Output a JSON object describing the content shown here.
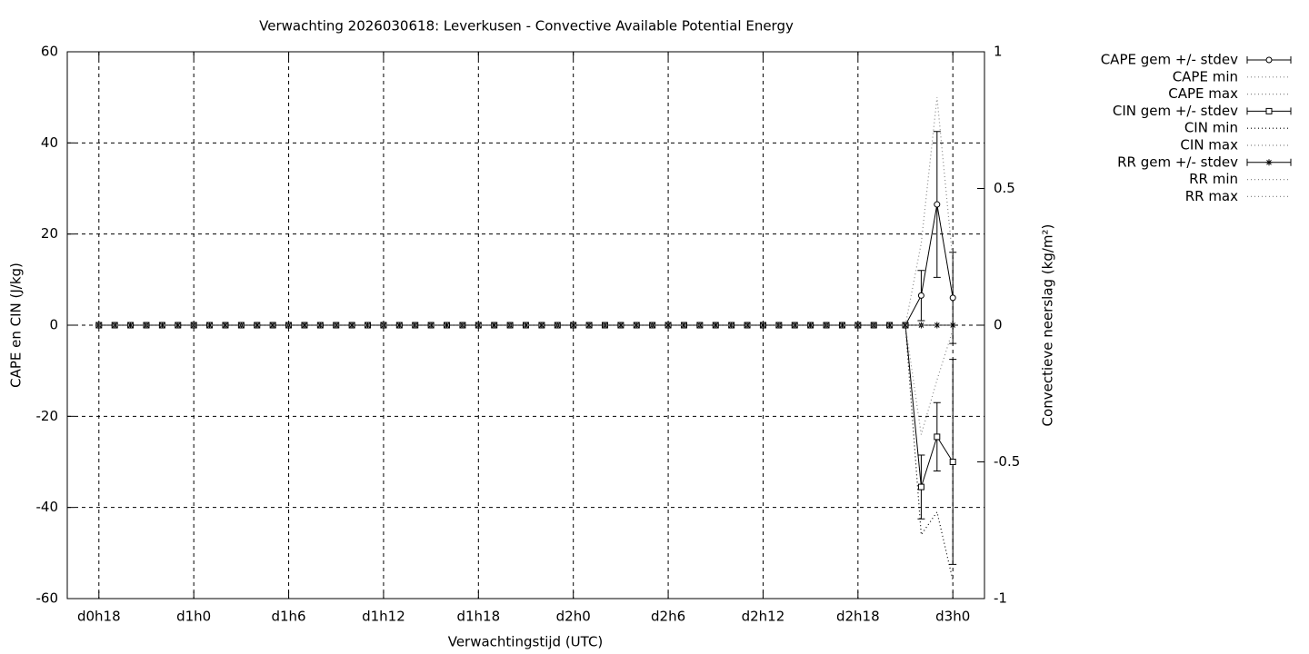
{
  "chart_data": {
    "type": "line",
    "title": "Verwachting 2026030618: Leverkusen - Convective Available Potential Energy",
    "xlabel": "Verwachtingstijd (UTC)",
    "ylabel": "CAPE en CIN (J/kg)",
    "y2label": "Convectieve neerslag (kg/m²)",
    "x": [
      18,
      19,
      20,
      21,
      22,
      23,
      24,
      25,
      26,
      27,
      28,
      29,
      30,
      31,
      32,
      33,
      34,
      35,
      36,
      37,
      38,
      39,
      40,
      41,
      42,
      43,
      44,
      45,
      46,
      47,
      48,
      49,
      50,
      51,
      52,
      53,
      54,
      55,
      56,
      57,
      58,
      59,
      60,
      61,
      62,
      63,
      64,
      65,
      66,
      67,
      68,
      69,
      70,
      71,
      72
    ],
    "xlim": [
      16,
      74
    ],
    "xticks": [
      {
        "value": 18,
        "label": "d0h18"
      },
      {
        "value": 24,
        "label": "d1h0"
      },
      {
        "value": 30,
        "label": "d1h6"
      },
      {
        "value": 36,
        "label": "d1h12"
      },
      {
        "value": 42,
        "label": "d1h18"
      },
      {
        "value": 48,
        "label": "d2h0"
      },
      {
        "value": 54,
        "label": "d2h6"
      },
      {
        "value": 60,
        "label": "d2h12"
      },
      {
        "value": 66,
        "label": "d2h18"
      },
      {
        "value": 72,
        "label": "d3h0"
      }
    ],
    "ylim": [
      -60,
      60
    ],
    "yticks": [
      -60,
      -40,
      -20,
      0,
      20,
      40,
      60
    ],
    "y2lim": [
      -1,
      1
    ],
    "y2ticks": [
      -1,
      -0.5,
      0,
      0.5,
      1
    ],
    "grid": true,
    "legend": "right",
    "series": [
      {
        "name": "CAPE gem +/- stdev",
        "color": "#000000",
        "style": "errorlines",
        "marker": "circle",
        "values": [
          0,
          0,
          0,
          0,
          0,
          0,
          0,
          0,
          0,
          0,
          0,
          0,
          0,
          0,
          0,
          0,
          0,
          0,
          0,
          0,
          0,
          0,
          0,
          0,
          0,
          0,
          0,
          0,
          0,
          0,
          0,
          0,
          0,
          0,
          0,
          0,
          0,
          0,
          0,
          0,
          0,
          0,
          0,
          0,
          0,
          0,
          0,
          0,
          0,
          0,
          0,
          0,
          6.5,
          26.5,
          6
        ],
        "errors": [
          0,
          0,
          0,
          0,
          0,
          0,
          0,
          0,
          0,
          0,
          0,
          0,
          0,
          0,
          0,
          0,
          0,
          0,
          0,
          0,
          0,
          0,
          0,
          0,
          0,
          0,
          0,
          0,
          0,
          0,
          0,
          0,
          0,
          0,
          0,
          0,
          0,
          0,
          0,
          0,
          0,
          0,
          0,
          0,
          0,
          0,
          0,
          0,
          0,
          0,
          0,
          0,
          5.5,
          16,
          10
        ]
      },
      {
        "name": "CAPE min",
        "color": "#888888",
        "style": "dotted",
        "values": [
          0,
          0,
          0,
          0,
          0,
          0,
          0,
          0,
          0,
          0,
          0,
          0,
          0,
          0,
          0,
          0,
          0,
          0,
          0,
          0,
          0,
          0,
          0,
          0,
          0,
          0,
          0,
          0,
          0,
          0,
          0,
          0,
          0,
          0,
          0,
          0,
          0,
          0,
          0,
          0,
          0,
          0,
          0,
          0,
          0,
          0,
          0,
          0,
          0,
          0,
          0,
          0,
          0,
          0,
          0
        ]
      },
      {
        "name": "CAPE max",
        "color": "#888888",
        "style": "dotted",
        "values": [
          0,
          0,
          0,
          0,
          0,
          0,
          0,
          0,
          0,
          0,
          0,
          0,
          0,
          0,
          0,
          0,
          0,
          0,
          0,
          0,
          0,
          0,
          0,
          0,
          0,
          0,
          0,
          0,
          0,
          0,
          0,
          0,
          0,
          0,
          0,
          0,
          0,
          0,
          0,
          0,
          0,
          0,
          0,
          0,
          0,
          0,
          0,
          0,
          0,
          0,
          0,
          0,
          18,
          50,
          14
        ]
      },
      {
        "name": "CIN gem +/- stdev",
        "color": "#000000",
        "style": "errorlines",
        "marker": "square",
        "values": [
          0,
          0,
          0,
          0,
          0,
          0,
          0,
          0,
          0,
          0,
          0,
          0,
          0,
          0,
          0,
          0,
          0,
          0,
          0,
          0,
          0,
          0,
          0,
          0,
          0,
          0,
          0,
          0,
          0,
          0,
          0,
          0,
          0,
          0,
          0,
          0,
          0,
          0,
          0,
          0,
          0,
          0,
          0,
          0,
          0,
          0,
          0,
          0,
          0,
          0,
          0,
          0,
          -35.5,
          -24.5,
          -30
        ],
        "errors": [
          0,
          0,
          0,
          0,
          0,
          0,
          0,
          0,
          0,
          0,
          0,
          0,
          0,
          0,
          0,
          0,
          0,
          0,
          0,
          0,
          0,
          0,
          0,
          0,
          0,
          0,
          0,
          0,
          0,
          0,
          0,
          0,
          0,
          0,
          0,
          0,
          0,
          0,
          0,
          0,
          0,
          0,
          0,
          0,
          0,
          0,
          0,
          0,
          0,
          0,
          0,
          0,
          7,
          7.5,
          22.5
        ]
      },
      {
        "name": "CIN min",
        "color": "#000000",
        "style": "dotted",
        "values": [
          0,
          0,
          0,
          0,
          0,
          0,
          0,
          0,
          0,
          0,
          0,
          0,
          0,
          0,
          0,
          0,
          0,
          0,
          0,
          0,
          0,
          0,
          0,
          0,
          0,
          0,
          0,
          0,
          0,
          0,
          0,
          0,
          0,
          0,
          0,
          0,
          0,
          0,
          0,
          0,
          0,
          0,
          0,
          0,
          0,
          0,
          0,
          0,
          0,
          0,
          0,
          0,
          -46,
          -41,
          -56
        ]
      },
      {
        "name": "CIN max",
        "color": "#888888",
        "style": "dotted",
        "values": [
          0,
          0,
          0,
          0,
          0,
          0,
          0,
          0,
          0,
          0,
          0,
          0,
          0,
          0,
          0,
          0,
          0,
          0,
          0,
          0,
          0,
          0,
          0,
          0,
          0,
          0,
          0,
          0,
          0,
          0,
          0,
          0,
          0,
          0,
          0,
          0,
          0,
          0,
          0,
          0,
          0,
          0,
          0,
          0,
          0,
          0,
          0,
          0,
          0,
          0,
          0,
          0,
          -24,
          -12,
          -1
        ]
      },
      {
        "name": "RR gem +/- stdev",
        "color": "#000000",
        "style": "errorlines",
        "marker": "star",
        "axis": "y2",
        "values": [
          0,
          0,
          0,
          0,
          0,
          0,
          0,
          0,
          0,
          0,
          0,
          0,
          0,
          0,
          0,
          0,
          0,
          0,
          0,
          0,
          0,
          0,
          0,
          0,
          0,
          0,
          0,
          0,
          0,
          0,
          0,
          0,
          0,
          0,
          0,
          0,
          0,
          0,
          0,
          0,
          0,
          0,
          0,
          0,
          0,
          0,
          0,
          0,
          0,
          0,
          0,
          0,
          0,
          0,
          0
        ],
        "errors": [
          0,
          0,
          0,
          0,
          0,
          0,
          0,
          0,
          0,
          0,
          0,
          0,
          0,
          0,
          0,
          0,
          0,
          0,
          0,
          0,
          0,
          0,
          0,
          0,
          0,
          0,
          0,
          0,
          0,
          0,
          0,
          0,
          0,
          0,
          0,
          0,
          0,
          0,
          0,
          0,
          0,
          0,
          0,
          0,
          0,
          0,
          0,
          0,
          0,
          0,
          0,
          0,
          0,
          0,
          0
        ]
      },
      {
        "name": "RR min",
        "color": "#888888",
        "style": "dotted",
        "axis": "y2",
        "values": [
          0,
          0,
          0,
          0,
          0,
          0,
          0,
          0,
          0,
          0,
          0,
          0,
          0,
          0,
          0,
          0,
          0,
          0,
          0,
          0,
          0,
          0,
          0,
          0,
          0,
          0,
          0,
          0,
          0,
          0,
          0,
          0,
          0,
          0,
          0,
          0,
          0,
          0,
          0,
          0,
          0,
          0,
          0,
          0,
          0,
          0,
          0,
          0,
          0,
          0,
          0,
          0,
          0,
          0,
          0
        ]
      },
      {
        "name": "RR max",
        "color": "#888888",
        "style": "dotted",
        "axis": "y2",
        "values": [
          0,
          0,
          0,
          0,
          0,
          0,
          0,
          0,
          0,
          0,
          0,
          0,
          0,
          0,
          0,
          0,
          0,
          0,
          0,
          0,
          0,
          0,
          0,
          0,
          0,
          0,
          0,
          0,
          0,
          0,
          0,
          0,
          0,
          0,
          0,
          0,
          0,
          0,
          0,
          0,
          0,
          0,
          0,
          0,
          0,
          0,
          0,
          0,
          0,
          0,
          0,
          0,
          0,
          0,
          0
        ]
      }
    ]
  }
}
